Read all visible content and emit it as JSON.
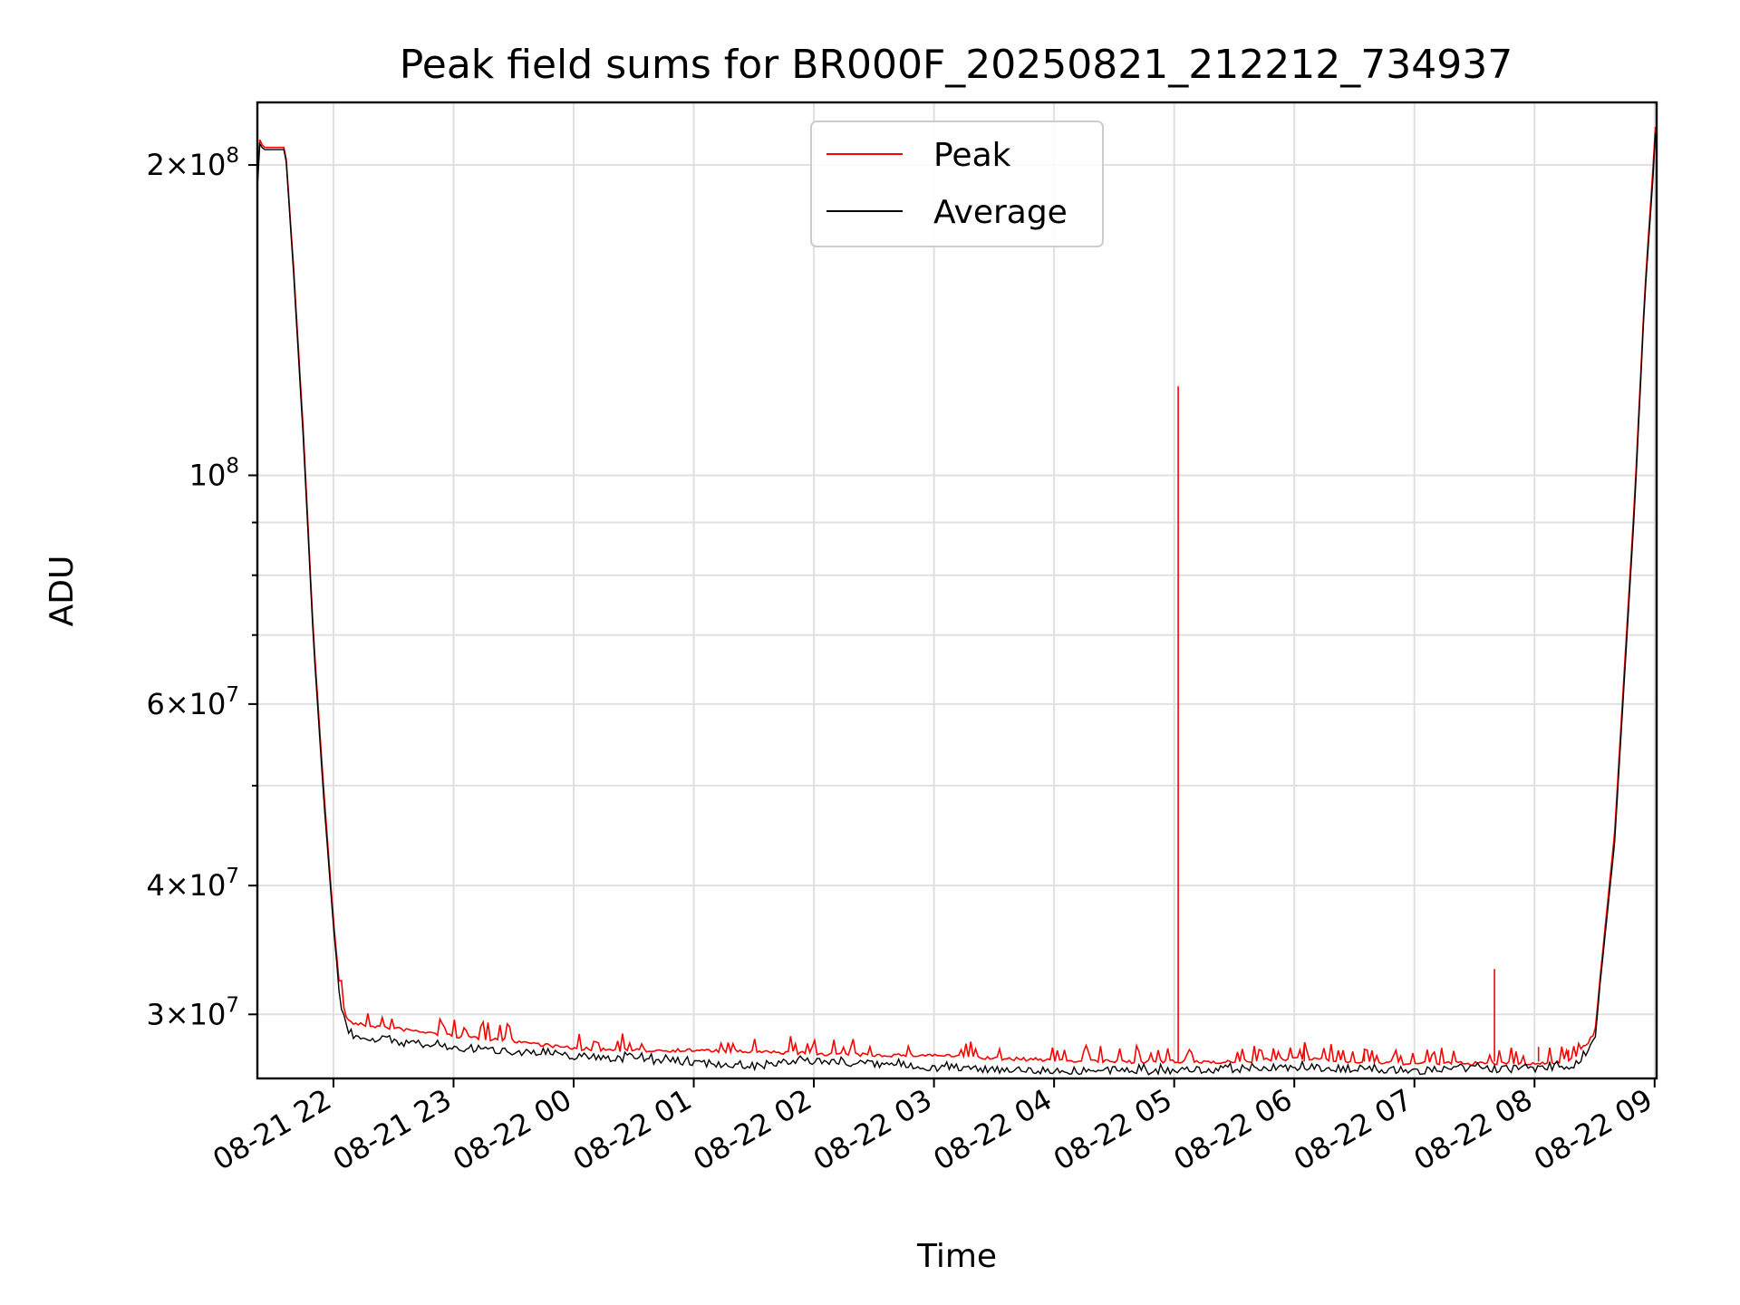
{
  "chart_data": {
    "type": "line",
    "title": "Peak field sums for BR000F_20250821_212212_734937",
    "xlabel": "Time",
    "ylabel": "ADU",
    "yscale": "log",
    "xlim": [
      "2025-08-21 21:22",
      "2025-08-22 09:01"
    ],
    "ylim": [
      26000000,
      230000000
    ],
    "grid": true,
    "legend": {
      "position": "top-center",
      "entries": [
        "Peak",
        "Average"
      ]
    },
    "x_ticks": [
      "08-21 22",
      "08-21 23",
      "08-22 00",
      "08-22 01",
      "08-22 02",
      "08-22 03",
      "08-22 04",
      "08-22 05",
      "08-22 06",
      "08-22 07",
      "08-22 08",
      "08-22 09"
    ],
    "x_tick_times": [
      "2025-08-21 22:00",
      "2025-08-21 23:00",
      "2025-08-22 00:00",
      "2025-08-22 01:00",
      "2025-08-22 02:00",
      "2025-08-22 03:00",
      "2025-08-22 04:00",
      "2025-08-22 05:00",
      "2025-08-22 06:00",
      "2025-08-22 07:00",
      "2025-08-22 08:00",
      "2025-08-22 09:00"
    ],
    "y_ticks": [
      {
        "value": 30000000,
        "mant": "3",
        "exp": "7"
      },
      {
        "value": 40000000,
        "mant": "4",
        "exp": "7"
      },
      {
        "value": 60000000,
        "mant": "6",
        "exp": "7"
      },
      {
        "value": 100000000,
        "mant": "",
        "exp": "8"
      },
      {
        "value": 200000000,
        "mant": "2",
        "exp": "8"
      }
    ],
    "y_minor_ticks": [
      50000000,
      70000000,
      80000000,
      90000000
    ],
    "series": [
      {
        "name": "Peak",
        "color": "#ff0000",
        "x": [
          "2025-08-21 21:22",
          "2025-08-21 21:23",
          "2025-08-21 21:25",
          "2025-08-21 21:30",
          "2025-08-21 21:36",
          "2025-08-21 21:40",
          "2025-08-21 21:45",
          "2025-08-21 21:50",
          "2025-08-21 21:55",
          "2025-08-21 22:00",
          "2025-08-21 22:03",
          "2025-08-21 22:06",
          "2025-08-21 22:10",
          "2025-08-21 22:30",
          "2025-08-21 23:00",
          "2025-08-21 23:30",
          "2025-08-22 00:00",
          "2025-08-22 00:30",
          "2025-08-22 01:00",
          "2025-08-22 01:30",
          "2025-08-22 02:00",
          "2025-08-22 02:30",
          "2025-08-22 03:00",
          "2025-08-22 03:30",
          "2025-08-22 04:00",
          "2025-08-22 04:30",
          "2025-08-22 05:00",
          "2025-08-22 05:30",
          "2025-08-22 06:00",
          "2025-08-22 06:30",
          "2025-08-22 07:00",
          "2025-08-22 07:30",
          "2025-08-22 08:00",
          "2025-08-22 08:10",
          "2025-08-22 08:20",
          "2025-08-22 08:30",
          "2025-08-22 08:40",
          "2025-08-22 08:50",
          "2025-08-22 08:55",
          "2025-08-22 09:00",
          "2025-08-22 09:01"
        ],
        "y": [
          195000000,
          212000000,
          208000000,
          208000000,
          208000000,
          160000000,
          110000000,
          70000000,
          50000000,
          37000000,
          32000000,
          30000000,
          29500000,
          29200000,
          28700000,
          28400000,
          27900000,
          27800000,
          27800000,
          27700000,
          27600000,
          27500000,
          27500000,
          27300000,
          27200000,
          27100000,
          27100000,
          27100000,
          27300000,
          27100000,
          27000000,
          27000000,
          27000000,
          27000000,
          27400000,
          28800000,
          45000000,
          95000000,
          150000000,
          210000000,
          230000000
        ],
        "spikes": [
          {
            "x": "2025-08-22 05:02",
            "y": 122000000
          },
          {
            "x": "2025-08-22 07:40",
            "y": 33200000
          },
          {
            "x": "2025-08-22 06:05",
            "y": 28100000
          },
          {
            "x": "2025-08-22 06:35",
            "y": 27800000
          },
          {
            "x": "2025-08-22 08:02",
            "y": 27900000
          },
          {
            "x": "2025-08-22 08:17",
            "y": 27700000
          }
        ]
      },
      {
        "name": "Average",
        "color": "#000000",
        "x": [
          "2025-08-21 21:22",
          "2025-08-21 21:23",
          "2025-08-21 21:25",
          "2025-08-21 21:30",
          "2025-08-21 21:36",
          "2025-08-21 21:40",
          "2025-08-21 21:45",
          "2025-08-21 21:50",
          "2025-08-21 21:55",
          "2025-08-21 22:00",
          "2025-08-21 22:03",
          "2025-08-21 22:06",
          "2025-08-21 22:10",
          "2025-08-21 22:30",
          "2025-08-21 23:00",
          "2025-08-21 23:30",
          "2025-08-22 00:00",
          "2025-08-22 00:30",
          "2025-08-22 01:00",
          "2025-08-22 01:30",
          "2025-08-22 02:00",
          "2025-08-22 02:30",
          "2025-08-22 03:00",
          "2025-08-22 03:30",
          "2025-08-22 04:00",
          "2025-08-22 04:30",
          "2025-08-22 05:00",
          "2025-08-22 05:30",
          "2025-08-22 06:00",
          "2025-08-22 06:30",
          "2025-08-22 07:00",
          "2025-08-22 07:30",
          "2025-08-22 08:00",
          "2025-08-22 08:10",
          "2025-08-22 08:20",
          "2025-08-22 08:30",
          "2025-08-22 08:40",
          "2025-08-22 08:50",
          "2025-08-22 08:55",
          "2025-08-22 09:00",
          "2025-08-22 09:01"
        ],
        "y": [
          190000000,
          210000000,
          207000000,
          207000000,
          207000000,
          158000000,
          108000000,
          69000000,
          49000000,
          36500000,
          31500000,
          29300000,
          28900000,
          28500000,
          28100000,
          27900000,
          27600000,
          27400000,
          27200000,
          27000000,
          27300000,
          27100000,
          26900000,
          26800000,
          26700000,
          26700000,
          26700000,
          26800000,
          26900000,
          26800000,
          26700000,
          26800000,
          26800000,
          26900000,
          27000000,
          28500000,
          44000000,
          93000000,
          148000000,
          205000000,
          230000000
        ]
      }
    ]
  }
}
